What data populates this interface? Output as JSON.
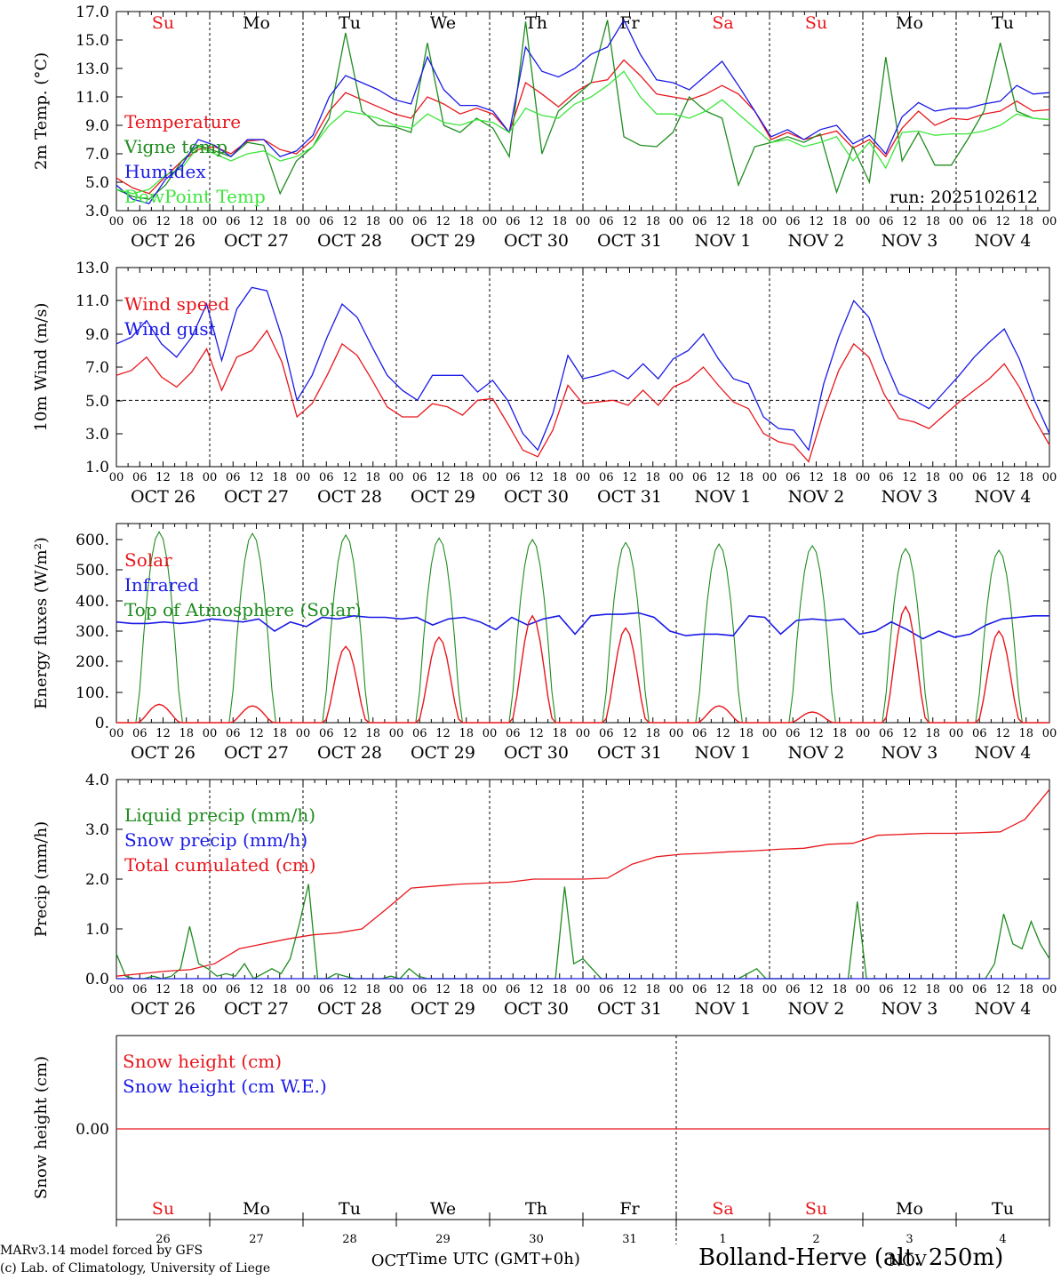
{
  "run_label": "run: 2025102612",
  "day_names": [
    "Su",
    "Mo",
    "Tu",
    "We",
    "Th",
    "Fr",
    "Sa",
    "Su",
    "Mo",
    "Tu"
  ],
  "weekend_indices": [
    0,
    6,
    7
  ],
  "date_labels": [
    "OCT 26",
    "OCT 27",
    "OCT 28",
    "OCT 29",
    "OCT 30",
    "OCT 31",
    "NOV  1",
    "NOV  2",
    "NOV  3",
    "NOV  4"
  ],
  "hour_labels": [
    "00",
    "06",
    "12",
    "18"
  ],
  "end_hour_label": "00",
  "bottom_day_numbers": [
    "26",
    "27",
    "28",
    "29",
    "30",
    "31",
    "1",
    "2",
    "3",
    "4"
  ],
  "month_labels": [
    "OCT",
    "NOV"
  ],
  "x_axis_title": "Time UTC (GMT+0h)",
  "footer": {
    "model": "MARv3.14 model forced by GFS",
    "lab": "(c) Lab. of Climatology, University of Liege",
    "location": "Bolland-Herve (alt. 250m)"
  },
  "colors": {
    "red": "#e8161c",
    "green": "#1e8c1e",
    "blue": "#1a1ae6",
    "lightgreen": "#3ce63c",
    "black": "#000000"
  },
  "chart_data": [
    {
      "type": "line",
      "title": "",
      "ylabel": "2m Temp. (°C)",
      "ylim": [
        3,
        17
      ],
      "yticks": [
        "17.0",
        "15.0",
        "13.0",
        "11.0",
        "9.0",
        "7.0",
        "5.0",
        "3.0"
      ],
      "legend": [
        "Temperature",
        "Vigne temp",
        "Humidex",
        "DewPoint Temp"
      ],
      "x_hours_step": 6,
      "series": [
        {
          "name": "Temperature",
          "color": "red",
          "values": [
            5.3,
            4.6,
            4.2,
            5.4,
            6.5,
            7.3,
            7.5,
            7.0,
            7.9,
            8.0,
            7.3,
            7.0,
            8.0,
            10.0,
            11.3,
            10.8,
            10.3,
            9.8,
            9.5,
            11.0,
            10.5,
            9.8,
            10.2,
            9.8,
            8.5,
            12.0,
            11.2,
            10.3,
            11.3,
            12.0,
            12.2,
            13.6,
            12.5,
            11.2,
            11.0,
            10.8,
            11.2,
            11.8,
            11.2,
            10.0,
            8.0,
            8.5,
            8.0,
            8.3,
            8.6,
            7.4,
            8.0,
            6.8,
            8.8,
            10.0,
            9.0,
            9.5,
            9.4,
            9.8,
            10.0,
            10.7,
            10.0,
            10.1
          ]
        },
        {
          "name": "Vigne temp",
          "color": "green",
          "values": [
            4.5,
            4.0,
            3.8,
            4.8,
            6.5,
            7.6,
            7.2,
            6.8,
            7.8,
            7.6,
            4.2,
            6.5,
            7.5,
            9.5,
            15.5,
            10.0,
            9.0,
            8.9,
            8.5,
            14.8,
            9.0,
            8.5,
            9.5,
            8.8,
            6.8,
            16.3,
            7.0,
            10.0,
            11.0,
            12.0,
            16.4,
            8.2,
            7.6,
            7.5,
            8.5,
            11.0,
            10.0,
            9.5,
            4.8,
            7.5,
            7.8,
            8.2,
            7.8,
            8.4,
            4.3,
            7.5,
            5.0,
            13.8,
            6.5,
            8.5,
            6.2,
            6.2,
            8.0,
            10.0,
            14.8,
            10.0,
            9.5,
            9.4
          ]
        },
        {
          "name": "Humidex",
          "color": "blue",
          "values": [
            4.8,
            3.8,
            3.5,
            5.2,
            6.2,
            8.0,
            7.6,
            6.8,
            8.0,
            8.0,
            6.8,
            7.2,
            8.3,
            11.0,
            12.5,
            12.0,
            11.5,
            10.8,
            10.5,
            13.8,
            11.5,
            10.4,
            10.4,
            10.0,
            8.5,
            14.5,
            12.8,
            12.4,
            13.0,
            14.0,
            14.5,
            16.4,
            14.0,
            12.2,
            12.0,
            11.5,
            12.5,
            13.5,
            11.8,
            10.0,
            8.2,
            8.7,
            8.0,
            8.7,
            9.0,
            7.7,
            8.3,
            7.0,
            9.6,
            10.6,
            10.0,
            10.2,
            10.2,
            10.5,
            10.7,
            11.8,
            11.2,
            11.3
          ]
        },
        {
          "name": "DewPoint Temp",
          "color": "lightgreen",
          "values": [
            4.5,
            4.2,
            4.5,
            5.5,
            6.0,
            7.5,
            7.0,
            6.5,
            7.0,
            7.2,
            6.5,
            6.8,
            7.5,
            9.0,
            10.0,
            9.8,
            9.5,
            9.0,
            8.8,
            9.8,
            9.2,
            9.0,
            9.4,
            9.2,
            8.5,
            10.2,
            9.7,
            9.5,
            10.5,
            11.0,
            11.8,
            12.8,
            11.0,
            9.8,
            9.8,
            9.5,
            10.0,
            10.8,
            9.8,
            8.8,
            7.8,
            8.0,
            7.5,
            7.8,
            8.2,
            6.5,
            7.8,
            6.0,
            8.5,
            8.6,
            8.3,
            8.4,
            8.4,
            8.6,
            9.0,
            9.8,
            9.5,
            9.4
          ]
        }
      ]
    },
    {
      "type": "line",
      "ylabel": "10m Wind (m/s)",
      "ylim": [
        1,
        13
      ],
      "yticks": [
        "13.0",
        "11.0",
        "9.0",
        "7.0",
        "5.0",
        "3.0",
        "1.0"
      ],
      "legend": [
        "Wind speed",
        "Wind gust"
      ],
      "reference_line": 5.0,
      "series": [
        {
          "name": "Wind speed",
          "color": "red",
          "values": [
            6.5,
            6.8,
            7.6,
            6.4,
            5.8,
            6.7,
            8.1,
            5.6,
            7.6,
            8.0,
            9.2,
            7.3,
            4.0,
            4.8,
            6.5,
            8.4,
            7.7,
            6.2,
            4.6,
            4.0,
            4.0,
            4.8,
            4.6,
            4.1,
            5.0,
            5.1,
            3.6,
            2.0,
            1.6,
            3.2,
            5.9,
            4.8,
            4.9,
            5.0,
            4.7,
            5.6,
            4.7,
            5.8,
            6.2,
            7.0,
            5.9,
            4.9,
            4.5,
            3.0,
            2.5,
            2.3,
            1.3,
            4.3,
            6.8,
            8.4,
            7.6,
            5.4,
            3.9,
            3.7,
            3.3,
            4.1,
            4.9,
            5.6,
            6.3,
            7.2,
            5.8,
            3.9,
            2.3
          ]
        },
        {
          "name": "Wind gust",
          "color": "blue",
          "values": [
            8.4,
            8.8,
            9.8,
            8.4,
            7.6,
            8.8,
            10.8,
            7.4,
            10.5,
            11.8,
            11.6,
            8.8,
            5.0,
            6.5,
            8.8,
            10.8,
            10.0,
            8.2,
            6.5,
            5.6,
            5.0,
            6.5,
            6.5,
            6.5,
            5.5,
            6.2,
            5.0,
            3.0,
            2.0,
            4.2,
            7.7,
            6.3,
            6.5,
            6.8,
            6.3,
            7.2,
            6.3,
            7.5,
            8.0,
            9.0,
            7.5,
            6.3,
            6.0,
            4.0,
            3.3,
            3.2,
            2.0,
            6.0,
            8.8,
            11.0,
            10.0,
            7.5,
            5.4,
            5.0,
            4.5,
            5.5,
            6.5,
            7.6,
            8.5,
            9.3,
            7.5,
            5.0,
            3.0
          ]
        }
      ]
    },
    {
      "type": "line",
      "ylabel": "Energy fluxes (W/m²)",
      "ylim": [
        0,
        650
      ],
      "yticks": [
        "600.",
        "500.",
        "400.",
        "300.",
        "200.",
        "100.",
        "0."
      ],
      "legend": [
        "Solar",
        "Infrared",
        "Top of Atmosphere (Solar)"
      ],
      "solar_noon_peaks": [
        60,
        55,
        250,
        280,
        350,
        310,
        55,
        35,
        380,
        300
      ],
      "toa_noon_peaks": [
        625,
        620,
        615,
        605,
        600,
        590,
        585,
        580,
        570,
        565
      ],
      "infrared_values": [
        330,
        325,
        325,
        330,
        325,
        330,
        340,
        335,
        330,
        340,
        300,
        330,
        315,
        345,
        340,
        350,
        345,
        345,
        340,
        345,
        320,
        340,
        345,
        330,
        305,
        345,
        320,
        340,
        350,
        290,
        350,
        355,
        355,
        360,
        345,
        300,
        285,
        290,
        290,
        285,
        350,
        345,
        290,
        335,
        340,
        335,
        340,
        290,
        300,
        330,
        305,
        275,
        300,
        280,
        290,
        320,
        340,
        345,
        350,
        350
      ]
    },
    {
      "type": "line",
      "ylabel": "Precip (mm/h)",
      "ylim": [
        0,
        4
      ],
      "yticks": [
        "4.0",
        "3.0",
        "2.0",
        "1.0",
        "0.0"
      ],
      "legend": [
        "Liquid precip (mm/h)",
        "Snow precip (mm/h)",
        "Total cumulated (cm)"
      ],
      "series": [
        {
          "name": "Liquid precip (mm/h)",
          "color": "green",
          "values": [
            0.5,
            0.05,
            0.0,
            0.0,
            0.05,
            0.0,
            0.05,
            0.2,
            1.05,
            0.3,
            0.2,
            0.05,
            0.1,
            0.05,
            0.3,
            0.0,
            0.1,
            0.2,
            0.1,
            0.4,
            1.1,
            1.9,
            0.0,
            0.0,
            0.1,
            0.05,
            0.0,
            0.0,
            0.0,
            0.0,
            0.05,
            0.0,
            0.2,
            0.05,
            0.0,
            0.0,
            0.0,
            0.0,
            0.0,
            0.0,
            0.0,
            0.0,
            0.0,
            0.0,
            0.0,
            0.0,
            0.0,
            0.0,
            0.0,
            1.85,
            0.3,
            0.4,
            0.2,
            0.0,
            0.0,
            0.0,
            0.0,
            0.0,
            0.0,
            0.0,
            0.0,
            0.0,
            0.0,
            0.0,
            0.0,
            0.0,
            0.0,
            0.0,
            0.0,
            0.1,
            0.2,
            0.0,
            0.0,
            0.0,
            0.0,
            0.0,
            0.0,
            0.0,
            0.0,
            0.0,
            0.0,
            1.55,
            0.0,
            0.0,
            0.0,
            0.0,
            0.0,
            0.0,
            0.0,
            0.0,
            0.0,
            0.0,
            0.0,
            0.0,
            0.0,
            0.0,
            0.3,
            1.3,
            0.7,
            0.6,
            1.15,
            0.7,
            0.4
          ]
        },
        {
          "name": "Snow precip (mm/h)",
          "color": "blue",
          "values": [
            0,
            0
          ]
        },
        {
          "name": "Total cumulated (cm)",
          "color": "red",
          "values": [
            0.05,
            0.1,
            0.15,
            0.18,
            0.3,
            0.6,
            0.7,
            0.8,
            0.88,
            0.92,
            1.0,
            1.4,
            1.82,
            1.86,
            1.9,
            1.92,
            1.94,
            2.0,
            2.0,
            2.0,
            2.02,
            2.3,
            2.45,
            2.5,
            2.52,
            2.55,
            2.57,
            2.6,
            2.62,
            2.7,
            2.72,
            2.88,
            2.9,
            2.92,
            2.92,
            2.93,
            2.95,
            3.2,
            3.8
          ]
        }
      ]
    },
    {
      "type": "line",
      "ylabel": "Snow height (cm)",
      "ylim": [
        -1,
        1
      ],
      "yticks": [
        "0.00"
      ],
      "legend": [
        "Snow height (cm)",
        "Snow height (cm W.E.)"
      ],
      "series": [
        {
          "name": "Snow height (cm)",
          "color": "red",
          "values": [
            0,
            0
          ]
        },
        {
          "name": "Snow height (cm W.E.)",
          "color": "blue",
          "values": [
            0,
            0
          ]
        }
      ]
    }
  ]
}
